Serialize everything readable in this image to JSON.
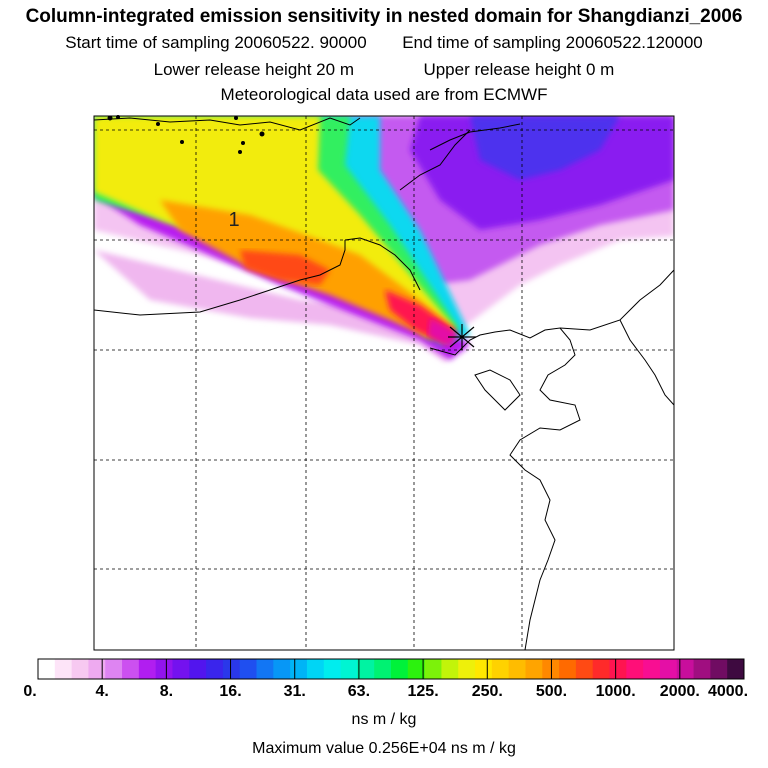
{
  "header": {
    "title": "Column-integrated emission sensitivity in nested domain for Shangdianzi_2006",
    "sampling_start": "Start time of sampling 20060522. 90000",
    "sampling_end": "End time of sampling 20060522.120000",
    "lower_release": "Lower release height   20 m",
    "upper_release": "Upper release height    0 m",
    "met_data": "Meteorological data used are from ECMWF"
  },
  "map": {
    "region_label": "1",
    "release_site": "Shangdianzi"
  },
  "colorbar": {
    "ticks": [
      "0.",
      "4.",
      "8.",
      "16.",
      "31.",
      "63.",
      "125.",
      "250.",
      "500.",
      "1000.",
      "2000.",
      "4000."
    ],
    "colors": [
      "#ffffff",
      "#fde4f8",
      "#f7c9f1",
      "#eeaaf0",
      "#de84f2",
      "#cc50f0",
      "#b11ef0",
      "#9214ee",
      "#7412ef",
      "#5215ee",
      "#3a25ec",
      "#2a38ea",
      "#1f4ff0",
      "#1276f4",
      "#0797f6",
      "#00b4f6",
      "#00d5f5",
      "#00edee",
      "#00f4d2",
      "#00f3a2",
      "#00f272",
      "#00f23a",
      "#2cf20e",
      "#7cf20a",
      "#c2f40a",
      "#eef00a",
      "#ffe800",
      "#ffd200",
      "#ffbc00",
      "#ffa400",
      "#ff8800",
      "#ff6a00",
      "#ff4a14",
      "#ff2a2a",
      "#ff1450",
      "#ff0f78",
      "#f80e92",
      "#e40fa6",
      "#c80e9c",
      "#a00e80",
      "#700c62",
      "#3e0a40"
    ],
    "units": "ns m / kg",
    "maximum_value": "Maximum value  0.256E+04 ns m / kg"
  }
}
